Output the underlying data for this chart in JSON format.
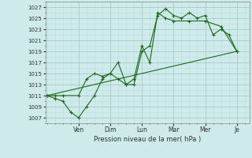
{
  "background_color": "#ceeaea",
  "grid_color_major": "#aacfcf",
  "grid_color_minor": "#bedddd",
  "line_color": "#1a6b1a",
  "xlabel": "Pression niveau de la mer( hPa )",
  "ylim": [
    1006,
    1028
  ],
  "yticks": [
    1007,
    1009,
    1011,
    1013,
    1015,
    1017,
    1019,
    1021,
    1023,
    1025,
    1027
  ],
  "x_day_labels": [
    "Ven",
    "Dim",
    "Lun",
    "Mar",
    "Mer",
    "Je"
  ],
  "x_day_positions": [
    2.0,
    4.0,
    6.0,
    8.0,
    10.0,
    12.0
  ],
  "xlim": [
    -0.1,
    12.8
  ],
  "series1_x": [
    0,
    0.5,
    1.0,
    1.5,
    2.0,
    2.5,
    3.0,
    3.5,
    4.0,
    4.5,
    5.0,
    5.5,
    6.0,
    6.5,
    7.0,
    7.5,
    8.0,
    8.5,
    9.0,
    9.5,
    10.0,
    10.5,
    11.0,
    11.5,
    12.0
  ],
  "series1_y": [
    1011,
    1010.5,
    1010,
    1008,
    1007,
    1009,
    1011,
    1014,
    1015,
    1014,
    1013,
    1013,
    1019,
    1020,
    1025.5,
    1026.7,
    1025.5,
    1025,
    1026,
    1025,
    1025.5,
    1022,
    1023,
    1022,
    1019
  ],
  "series2_x": [
    0,
    0.5,
    1.0,
    2.0,
    2.5,
    3.0,
    3.5,
    4.0,
    4.5,
    5.0,
    5.5,
    6.0,
    6.5,
    7.0,
    7.5,
    8.0,
    9.0,
    10.0,
    11.0,
    12.0
  ],
  "series2_y": [
    1011,
    1011,
    1011,
    1011,
    1014,
    1015,
    1014.5,
    1015,
    1017,
    1013,
    1014,
    1020,
    1017,
    1026,
    1025,
    1024.5,
    1024.5,
    1024.5,
    1023.5,
    1019
  ],
  "series3_x": [
    0,
    12.0
  ],
  "series3_y": [
    1011,
    1019
  ]
}
